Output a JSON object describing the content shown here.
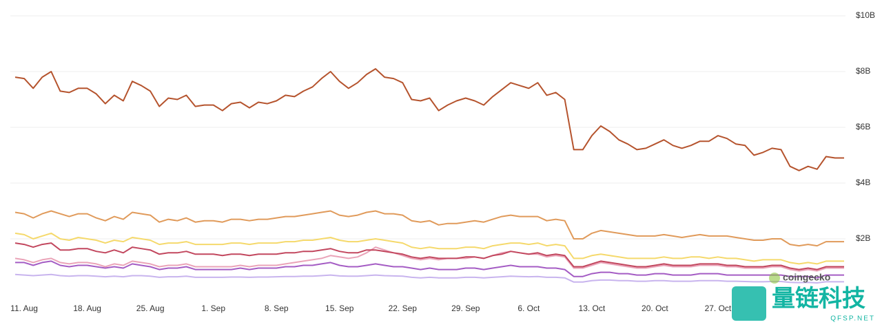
{
  "chart_data": {
    "type": "line",
    "categories": [
      null,
      "11. Aug",
      null,
      null,
      null,
      null,
      null,
      null,
      "18. Aug",
      null,
      null,
      null,
      null,
      null,
      null,
      "25. Aug",
      null,
      null,
      null,
      null,
      null,
      null,
      "1. Sep",
      null,
      null,
      null,
      null,
      null,
      null,
      "8. Sep",
      null,
      null,
      null,
      null,
      null,
      null,
      "15. Sep",
      null,
      null,
      null,
      null,
      null,
      null,
      "22. Sep",
      null,
      null,
      null,
      null,
      null,
      null,
      "29. Sep",
      null,
      null,
      null,
      null,
      null,
      null,
      "6. Oct",
      null,
      null,
      null,
      null,
      null,
      null,
      "13. Oct",
      null,
      null,
      null,
      null,
      null,
      null,
      "20. Oct",
      null,
      null,
      null,
      null,
      null,
      null,
      "27. Oct",
      null,
      null,
      null,
      null,
      null,
      null,
      null,
      null,
      null,
      null,
      null,
      null,
      null,
      null
    ],
    "ylim": [
      0,
      10
    ],
    "yticks": [
      {
        "value": 2,
        "label": "$2B"
      },
      {
        "value": 4,
        "label": "$4B"
      },
      {
        "value": 6,
        "label": "$6B"
      },
      {
        "value": 8,
        "label": "$8B"
      },
      {
        "value": 10,
        "label": "$10B"
      }
    ],
    "grid": true,
    "series": [
      {
        "color": "#b5532d",
        "values": [
          7.8,
          7.75,
          7.4,
          7.8,
          8.0,
          7.3,
          7.25,
          7.4,
          7.4,
          7.2,
          6.85,
          7.15,
          6.95,
          7.65,
          7.5,
          7.3,
          6.75,
          7.05,
          7.0,
          7.15,
          6.75,
          6.8,
          6.8,
          6.6,
          6.85,
          6.9,
          6.7,
          6.9,
          6.85,
          6.95,
          7.15,
          7.1,
          7.3,
          7.45,
          7.75,
          8.0,
          7.65,
          7.4,
          7.6,
          7.9,
          8.1,
          7.8,
          7.75,
          7.6,
          7.0,
          6.95,
          7.05,
          6.6,
          6.8,
          6.95,
          7.05,
          6.95,
          6.8,
          7.1,
          7.35,
          7.6,
          7.5,
          7.4,
          7.6,
          7.15,
          7.25,
          7.0,
          5.2,
          5.2,
          5.7,
          6.05,
          5.85,
          5.55,
          5.4,
          5.2,
          5.25,
          5.4,
          5.55,
          5.35,
          5.25,
          5.35,
          5.5,
          5.5,
          5.7,
          5.6,
          5.4,
          5.35,
          5.0,
          5.1,
          5.25,
          5.2,
          4.6,
          4.45,
          4.6,
          4.5,
          4.95,
          4.9,
          4.9
        ]
      },
      {
        "color": "#e09a5a",
        "values": [
          2.95,
          2.9,
          2.75,
          2.9,
          3.0,
          2.9,
          2.8,
          2.9,
          2.9,
          2.75,
          2.65,
          2.8,
          2.7,
          2.95,
          2.9,
          2.85,
          2.6,
          2.7,
          2.65,
          2.75,
          2.6,
          2.65,
          2.65,
          2.6,
          2.7,
          2.7,
          2.65,
          2.7,
          2.7,
          2.75,
          2.8,
          2.8,
          2.85,
          2.9,
          2.95,
          3.0,
          2.85,
          2.8,
          2.85,
          2.95,
          3.0,
          2.9,
          2.9,
          2.85,
          2.65,
          2.6,
          2.65,
          2.5,
          2.55,
          2.55,
          2.6,
          2.65,
          2.6,
          2.7,
          2.8,
          2.85,
          2.8,
          2.8,
          2.8,
          2.65,
          2.7,
          2.65,
          2.0,
          2.0,
          2.2,
          2.3,
          2.25,
          2.2,
          2.15,
          2.1,
          2.1,
          2.1,
          2.15,
          2.1,
          2.05,
          2.1,
          2.15,
          2.1,
          2.1,
          2.1,
          2.05,
          2.0,
          1.95,
          1.95,
          2.0,
          2.0,
          1.8,
          1.75,
          1.8,
          1.75,
          1.9,
          1.9,
          1.9
        ]
      },
      {
        "color": "#f5d96b",
        "values": [
          2.2,
          2.15,
          2.0,
          2.1,
          2.2,
          2.0,
          1.95,
          2.05,
          2.0,
          1.95,
          1.85,
          1.95,
          1.9,
          2.05,
          2.0,
          1.95,
          1.8,
          1.85,
          1.85,
          1.9,
          1.8,
          1.8,
          1.8,
          1.8,
          1.85,
          1.85,
          1.8,
          1.85,
          1.85,
          1.85,
          1.9,
          1.9,
          1.95,
          1.95,
          2.0,
          2.05,
          1.95,
          1.9,
          1.9,
          1.95,
          2.0,
          1.95,
          1.9,
          1.85,
          1.7,
          1.65,
          1.7,
          1.65,
          1.65,
          1.65,
          1.7,
          1.7,
          1.65,
          1.75,
          1.8,
          1.85,
          1.85,
          1.8,
          1.85,
          1.75,
          1.8,
          1.75,
          1.3,
          1.3,
          1.4,
          1.45,
          1.4,
          1.35,
          1.3,
          1.3,
          1.3,
          1.3,
          1.35,
          1.3,
          1.3,
          1.35,
          1.35,
          1.3,
          1.35,
          1.3,
          1.3,
          1.25,
          1.2,
          1.25,
          1.25,
          1.25,
          1.15,
          1.1,
          1.15,
          1.1,
          1.2,
          1.2,
          1.2
        ]
      },
      {
        "color": "#c2475e",
        "values": [
          1.85,
          1.8,
          1.7,
          1.8,
          1.85,
          1.6,
          1.6,
          1.65,
          1.65,
          1.55,
          1.5,
          1.6,
          1.5,
          1.7,
          1.65,
          1.6,
          1.45,
          1.5,
          1.5,
          1.55,
          1.45,
          1.45,
          1.45,
          1.4,
          1.45,
          1.45,
          1.4,
          1.45,
          1.45,
          1.45,
          1.5,
          1.5,
          1.55,
          1.55,
          1.6,
          1.65,
          1.55,
          1.5,
          1.5,
          1.6,
          1.6,
          1.55,
          1.5,
          1.45,
          1.35,
          1.3,
          1.35,
          1.3,
          1.3,
          1.3,
          1.35,
          1.35,
          1.3,
          1.4,
          1.45,
          1.55,
          1.5,
          1.45,
          1.5,
          1.4,
          1.45,
          1.4,
          1.0,
          1.0,
          1.1,
          1.2,
          1.15,
          1.1,
          1.05,
          1.0,
          1.0,
          1.05,
          1.1,
          1.05,
          1.05,
          1.05,
          1.1,
          1.1,
          1.1,
          1.05,
          1.05,
          1.0,
          1.0,
          1.0,
          1.05,
          1.05,
          0.95,
          0.9,
          0.95,
          0.9,
          1.0,
          1.0,
          1.0
        ]
      },
      {
        "color": "#eaa3b8",
        "values": [
          1.3,
          1.25,
          1.15,
          1.25,
          1.3,
          1.15,
          1.1,
          1.15,
          1.15,
          1.1,
          1.0,
          1.1,
          1.05,
          1.2,
          1.15,
          1.1,
          1.0,
          1.05,
          1.05,
          1.1,
          1.0,
          1.0,
          1.0,
          1.0,
          1.0,
          1.05,
          1.0,
          1.05,
          1.05,
          1.05,
          1.1,
          1.15,
          1.2,
          1.25,
          1.3,
          1.4,
          1.35,
          1.3,
          1.35,
          1.5,
          1.7,
          1.6,
          1.5,
          1.4,
          1.3,
          1.25,
          1.3,
          1.25,
          1.3,
          1.3,
          1.3,
          1.35,
          1.3,
          1.4,
          1.5,
          1.55,
          1.5,
          1.45,
          1.45,
          1.35,
          1.4,
          1.35,
          0.95,
          0.95,
          1.05,
          1.15,
          1.1,
          1.05,
          1.0,
          0.95,
          0.95,
          1.0,
          1.05,
          1.0,
          1.0,
          1.0,
          1.05,
          1.05,
          1.05,
          1.0,
          1.0,
          0.95,
          0.95,
          0.95,
          1.0,
          1.0,
          0.9,
          0.85,
          0.9,
          0.85,
          0.95,
          0.95,
          0.95
        ]
      },
      {
        "color": "#a45cc4",
        "values": [
          1.15,
          1.15,
          1.05,
          1.15,
          1.2,
          1.05,
          1.0,
          1.05,
          1.05,
          1.0,
          0.95,
          1.0,
          0.95,
          1.1,
          1.05,
          1.0,
          0.9,
          0.95,
          0.95,
          1.0,
          0.9,
          0.9,
          0.9,
          0.9,
          0.9,
          0.95,
          0.9,
          0.95,
          0.95,
          0.95,
          1.0,
          1.0,
          1.05,
          1.05,
          1.1,
          1.15,
          1.05,
          1.0,
          1.0,
          1.05,
          1.1,
          1.05,
          1.0,
          1.0,
          0.95,
          0.9,
          0.95,
          0.9,
          0.9,
          0.9,
          0.95,
          0.95,
          0.9,
          0.95,
          1.0,
          1.05,
          1.0,
          1.0,
          1.0,
          0.95,
          0.95,
          0.9,
          0.65,
          0.65,
          0.75,
          0.8,
          0.8,
          0.75,
          0.75,
          0.7,
          0.7,
          0.75,
          0.75,
          0.7,
          0.7,
          0.7,
          0.75,
          0.75,
          0.75,
          0.7,
          0.7,
          0.7,
          0.7,
          0.7,
          0.7,
          0.7,
          0.65,
          0.65,
          0.65,
          0.6,
          0.7,
          0.7,
          0.7
        ]
      },
      {
        "color": "#c8b4ee",
        "values": [
          0.72,
          0.7,
          0.68,
          0.7,
          0.72,
          0.68,
          0.66,
          0.68,
          0.68,
          0.66,
          0.64,
          0.66,
          0.64,
          0.68,
          0.68,
          0.66,
          0.62,
          0.64,
          0.64,
          0.66,
          0.62,
          0.62,
          0.62,
          0.62,
          0.63,
          0.63,
          0.62,
          0.63,
          0.63,
          0.64,
          0.65,
          0.65,
          0.66,
          0.66,
          0.68,
          0.7,
          0.67,
          0.66,
          0.66,
          0.68,
          0.7,
          0.68,
          0.67,
          0.66,
          0.62,
          0.6,
          0.62,
          0.6,
          0.6,
          0.6,
          0.62,
          0.62,
          0.6,
          0.62,
          0.64,
          0.66,
          0.65,
          0.64,
          0.65,
          0.62,
          0.62,
          0.6,
          0.45,
          0.45,
          0.5,
          0.52,
          0.52,
          0.5,
          0.5,
          0.48,
          0.48,
          0.5,
          0.5,
          0.48,
          0.48,
          0.48,
          0.5,
          0.5,
          0.5,
          0.48,
          0.48,
          0.47,
          0.46,
          0.46,
          0.47,
          0.47,
          0.44,
          0.43,
          0.44,
          0.42,
          0.46,
          0.46,
          0.46
        ]
      }
    ]
  },
  "watermarks": {
    "source": "coingecko",
    "brand": "量链科技",
    "site": "QFSP.NET"
  }
}
